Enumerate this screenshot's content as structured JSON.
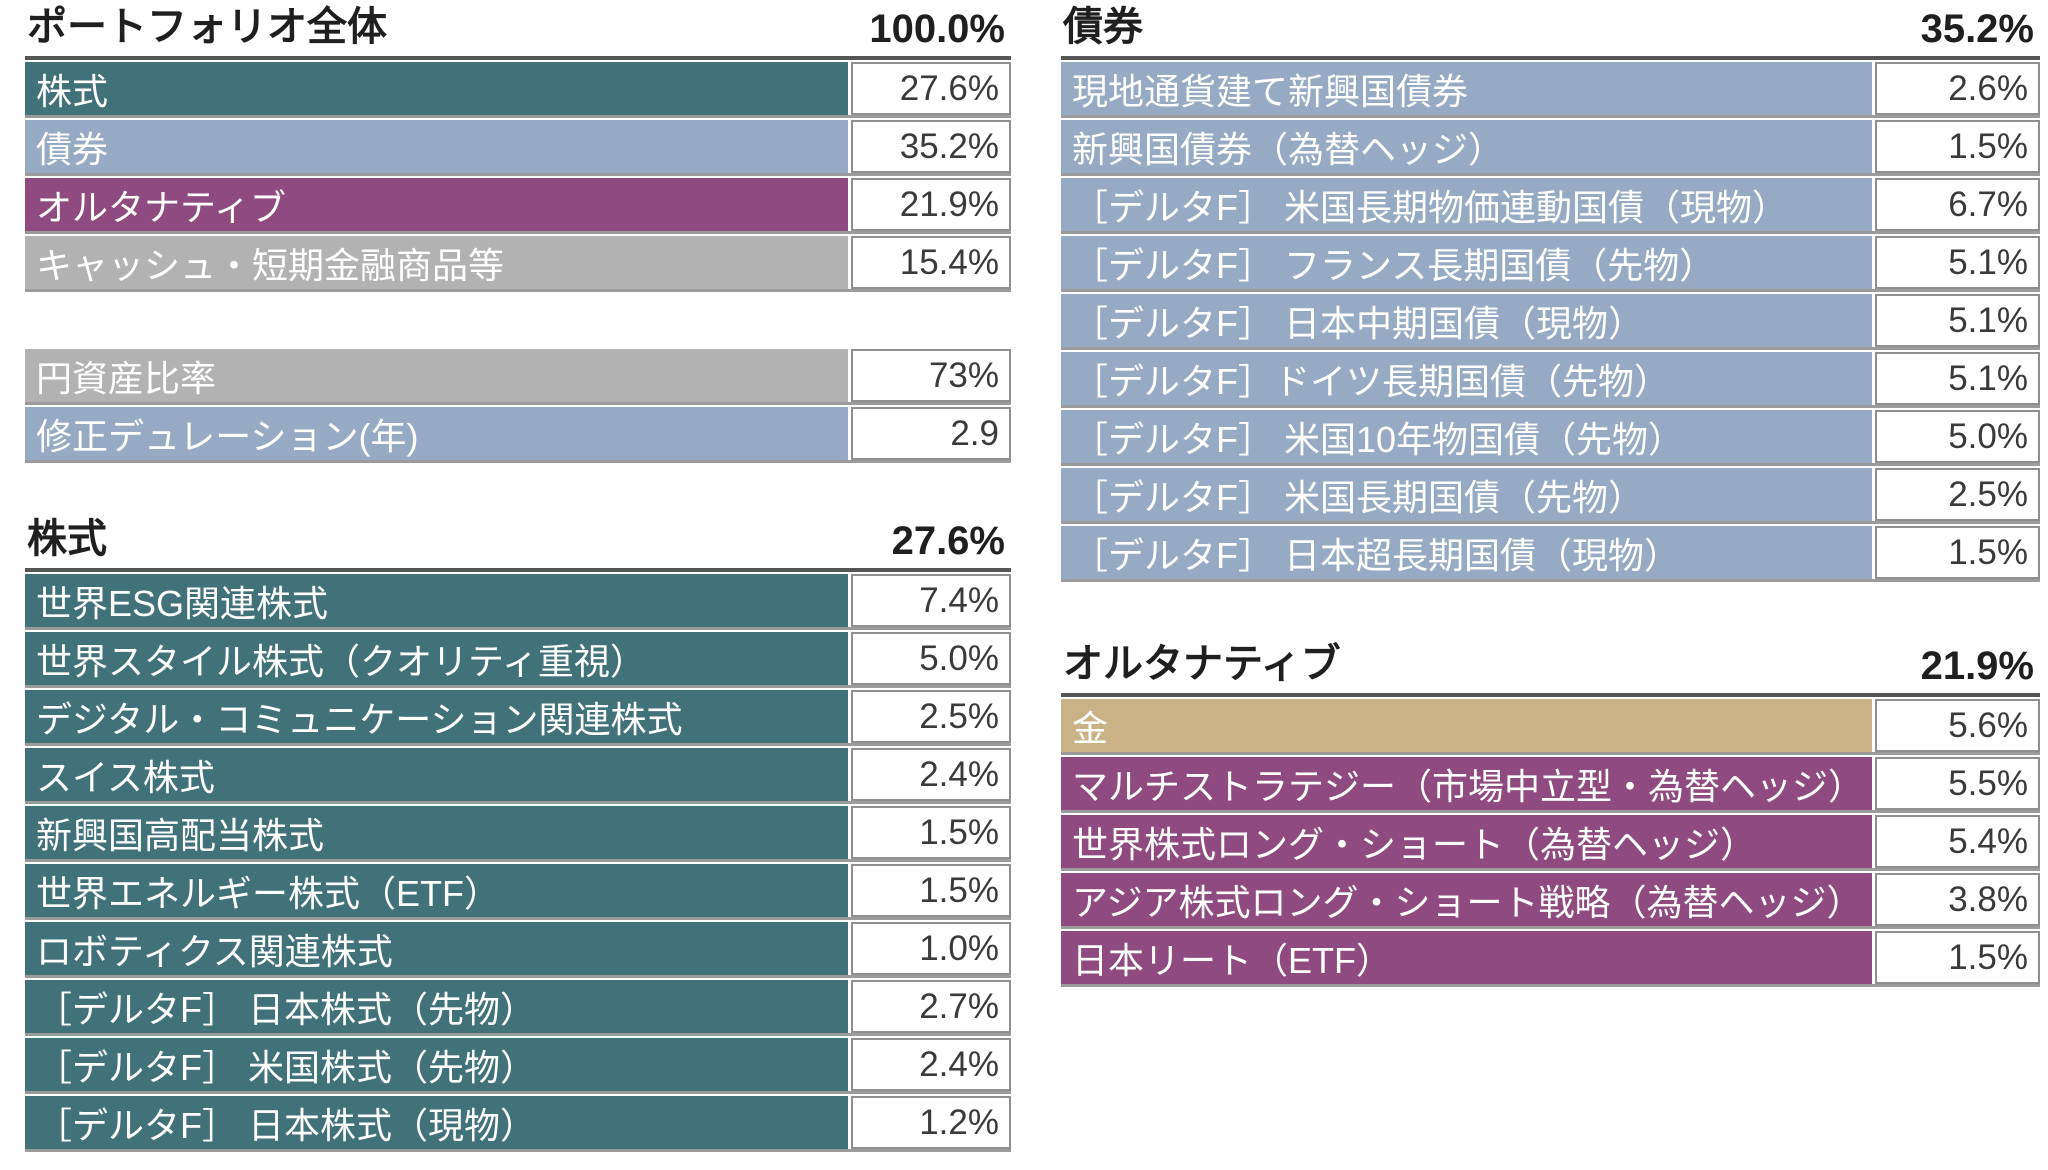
{
  "colors": {
    "equity": "#41727A",
    "bond": "#97AAC3",
    "alternative": "#8F4A80",
    "cash": "#B2B2B2",
    "gold": "#C9B386",
    "header_text": "#1F1F1F",
    "value_text": "#3A3A3A",
    "row_label_text": "#FFFFFF",
    "cell_border": "#8F8F8F",
    "header_underline": "#565656"
  },
  "sections": {
    "portfolio": {
      "title": "ポートフォリオ全体",
      "total": "100.0%",
      "rows": [
        {
          "label": "株式",
          "value": "27.6%",
          "color": "equity"
        },
        {
          "label": "債券",
          "value": "35.2%",
          "color": "bond"
        },
        {
          "label": "オルタナティブ",
          "value": "21.9%",
          "color": "alternative"
        },
        {
          "label": "キャッシュ・短期金融商品等",
          "value": "15.4%",
          "color": "cash"
        }
      ]
    },
    "metrics": {
      "rows": [
        {
          "label": "円資産比率",
          "value": "73%",
          "color": "cash"
        },
        {
          "label": "修正デュレーション(年)",
          "value": "2.9",
          "color": "bond"
        }
      ]
    },
    "equity": {
      "title": "株式",
      "total": "27.6%",
      "rows": [
        {
          "label": "世界ESG関連株式",
          "value": "7.4%",
          "color": "equity"
        },
        {
          "label": "世界スタイル株式（クオリティ重視）",
          "value": "5.0%",
          "color": "equity"
        },
        {
          "label": "デジタル・コミュニケーション関連株式",
          "value": "2.5%",
          "color": "equity"
        },
        {
          "label": "スイス株式",
          "value": "2.4%",
          "color": "equity"
        },
        {
          "label": "新興国高配当株式",
          "value": "1.5%",
          "color": "equity"
        },
        {
          "label": "世界エネルギー株式（ETF）",
          "value": "1.5%",
          "color": "equity"
        },
        {
          "label": "ロボティクス関連株式",
          "value": "1.0%",
          "color": "equity"
        },
        {
          "label": "［デルタF］ 日本株式（先物）",
          "value": "2.7%",
          "color": "equity"
        },
        {
          "label": "［デルタF］ 米国株式（先物）",
          "value": "2.4%",
          "color": "equity"
        },
        {
          "label": "［デルタF］ 日本株式（現物）",
          "value": "1.2%",
          "color": "equity"
        }
      ]
    },
    "bond": {
      "title": "債券",
      "total": "35.2%",
      "rows": [
        {
          "label": "現地通貨建て新興国債券",
          "value": "2.6%",
          "color": "bond"
        },
        {
          "label": "新興国債券（為替ヘッジ）",
          "value": "1.5%",
          "color": "bond"
        },
        {
          "label": "［デルタF］ 米国長期物価連動国債（現物）",
          "value": "6.7%",
          "color": "bond"
        },
        {
          "label": "［デルタF］ フランス長期国債（先物）",
          "value": "5.1%",
          "color": "bond"
        },
        {
          "label": "［デルタF］ 日本中期国債（現物）",
          "value": "5.1%",
          "color": "bond"
        },
        {
          "label": "［デルタF］ドイツ長期国債（先物）",
          "value": "5.1%",
          "color": "bond"
        },
        {
          "label": "［デルタF］ 米国10年物国債（先物）",
          "value": "5.0%",
          "color": "bond"
        },
        {
          "label": "［デルタF］ 米国長期国債（先物）",
          "value": "2.5%",
          "color": "bond"
        },
        {
          "label": "［デルタF］ 日本超長期国債（現物）",
          "value": "1.5%",
          "color": "bond"
        }
      ]
    },
    "alternative": {
      "title": "オルタナティブ",
      "total": "21.9%",
      "rows": [
        {
          "label": "金",
          "value": "5.6%",
          "color": "gold"
        },
        {
          "label": "マルチストラテジー（市場中立型・為替ヘッジ）",
          "value": "5.5%",
          "color": "alternative"
        },
        {
          "label": "世界株式ロング・ショート（為替ヘッジ）",
          "value": "5.4%",
          "color": "alternative"
        },
        {
          "label": "アジア株式ロング・ショート戦略（為替ヘッジ）",
          "value": "3.8%",
          "color": "alternative"
        },
        {
          "label": "日本リート（ETF）",
          "value": "1.5%",
          "color": "alternative"
        }
      ]
    }
  }
}
